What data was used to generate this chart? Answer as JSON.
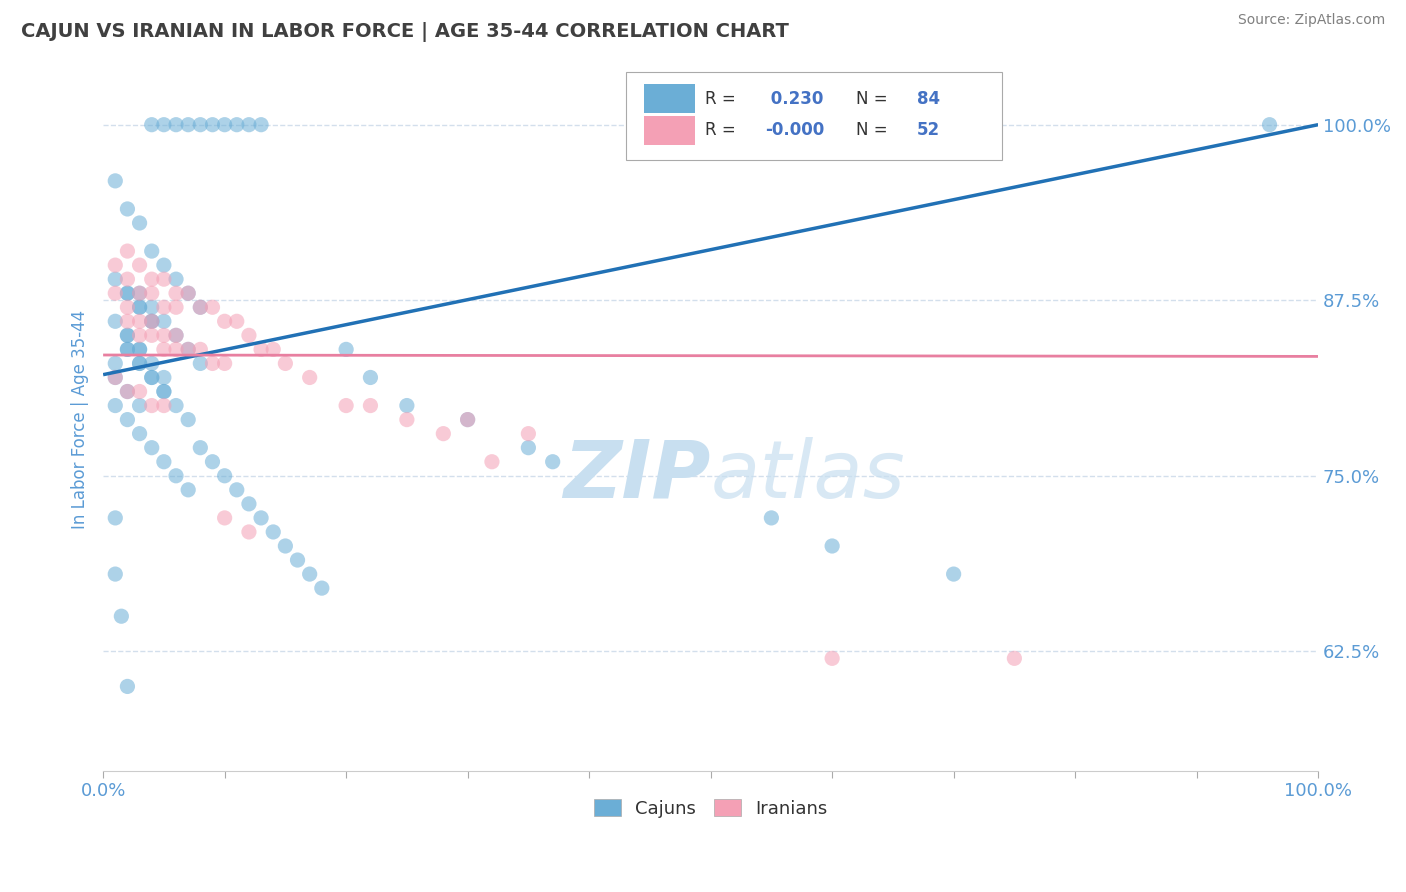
{
  "title": "CAJUN VS IRANIAN IN LABOR FORCE | AGE 35-44 CORRELATION CHART",
  "source": "Source: ZipAtlas.com",
  "ylabel": "In Labor Force | Age 35-44",
  "xlim": [
    0.0,
    1.0
  ],
  "ylim": [
    0.54,
    1.04
  ],
  "yticks": [
    0.625,
    0.75,
    0.875,
    1.0
  ],
  "ytick_labels": [
    "62.5%",
    "75.0%",
    "87.5%",
    "100.0%"
  ],
  "xticks": [
    0.0,
    0.1,
    0.2,
    0.3,
    0.4,
    0.5,
    0.6,
    0.7,
    0.8,
    0.9,
    1.0
  ],
  "xtick_labels_show": [
    "0.0%",
    "",
    "",
    "",
    "",
    "",
    "",
    "",
    "",
    "",
    "100.0%"
  ],
  "cajun_color": "#6baed6",
  "iranian_color": "#f4a0b5",
  "cajun_line_color": "#2171b5",
  "iranian_line_color": "#e87fa0",
  "r_cajun": 0.23,
  "n_cajun": 84,
  "r_iranian": -0.0,
  "n_iranian": 52,
  "legend_color": "#4472c4",
  "watermark_zip": "ZIP",
  "watermark_atlas": "atlas",
  "watermark_color": "#c8dff0",
  "background_color": "#ffffff",
  "title_color": "#404040",
  "title_fontsize": 14,
  "axis_label_color": "#5b9bd5",
  "tick_color": "#5b9bd5",
  "grid_color": "#c8d8e8",
  "cajun_x": [
    0.04,
    0.05,
    0.06,
    0.07,
    0.08,
    0.09,
    0.1,
    0.11,
    0.12,
    0.13,
    0.01,
    0.02,
    0.03,
    0.04,
    0.05,
    0.06,
    0.07,
    0.08,
    0.03,
    0.04,
    0.05,
    0.06,
    0.07,
    0.08,
    0.02,
    0.03,
    0.04,
    0.05,
    0.01,
    0.02,
    0.03,
    0.04,
    0.05,
    0.01,
    0.02,
    0.03,
    0.02,
    0.03,
    0.04,
    0.01,
    0.02,
    0.03,
    0.04,
    0.01,
    0.02,
    0.03,
    0.01,
    0.02,
    0.03,
    0.04,
    0.05,
    0.06,
    0.07,
    0.02,
    0.03,
    0.04,
    0.05,
    0.06,
    0.07,
    0.08,
    0.09,
    0.1,
    0.11,
    0.12,
    0.13,
    0.14,
    0.15,
    0.16,
    0.17,
    0.18,
    0.2,
    0.22,
    0.25,
    0.3,
    0.35,
    0.37,
    0.55,
    0.6,
    0.7,
    0.96,
    0.01,
    0.01,
    0.015,
    0.02
  ],
  "cajun_y": [
    1.0,
    1.0,
    1.0,
    1.0,
    1.0,
    1.0,
    1.0,
    1.0,
    1.0,
    1.0,
    0.96,
    0.94,
    0.93,
    0.91,
    0.9,
    0.89,
    0.88,
    0.87,
    0.88,
    0.87,
    0.86,
    0.85,
    0.84,
    0.83,
    0.85,
    0.84,
    0.83,
    0.82,
    0.83,
    0.84,
    0.83,
    0.82,
    0.81,
    0.86,
    0.85,
    0.84,
    0.88,
    0.87,
    0.86,
    0.89,
    0.88,
    0.87,
    0.86,
    0.82,
    0.81,
    0.8,
    0.8,
    0.79,
    0.78,
    0.77,
    0.76,
    0.75,
    0.74,
    0.84,
    0.83,
    0.82,
    0.81,
    0.8,
    0.79,
    0.77,
    0.76,
    0.75,
    0.74,
    0.73,
    0.72,
    0.71,
    0.7,
    0.69,
    0.68,
    0.67,
    0.84,
    0.82,
    0.8,
    0.79,
    0.77,
    0.76,
    0.72,
    0.7,
    0.68,
    1.0,
    0.72,
    0.68,
    0.65,
    0.6
  ],
  "iranian_x": [
    0.01,
    0.02,
    0.03,
    0.04,
    0.05,
    0.06,
    0.07,
    0.08,
    0.09,
    0.1,
    0.01,
    0.02,
    0.03,
    0.04,
    0.05,
    0.06,
    0.02,
    0.03,
    0.04,
    0.05,
    0.06,
    0.07,
    0.08,
    0.09,
    0.1,
    0.11,
    0.12,
    0.13,
    0.14,
    0.15,
    0.02,
    0.03,
    0.04,
    0.05,
    0.06,
    0.01,
    0.02,
    0.03,
    0.04,
    0.05,
    0.2,
    0.25,
    0.3,
    0.35,
    0.17,
    0.22,
    0.28,
    0.32,
    0.6,
    0.75,
    0.1,
    0.12
  ],
  "iranian_y": [
    0.88,
    0.87,
    0.86,
    0.86,
    0.85,
    0.85,
    0.84,
    0.84,
    0.83,
    0.83,
    0.9,
    0.89,
    0.88,
    0.88,
    0.87,
    0.87,
    0.91,
    0.9,
    0.89,
    0.89,
    0.88,
    0.88,
    0.87,
    0.87,
    0.86,
    0.86,
    0.85,
    0.84,
    0.84,
    0.83,
    0.86,
    0.85,
    0.85,
    0.84,
    0.84,
    0.82,
    0.81,
    0.81,
    0.8,
    0.8,
    0.8,
    0.79,
    0.79,
    0.78,
    0.82,
    0.8,
    0.78,
    0.76,
    0.62,
    0.62,
    0.72,
    0.71
  ],
  "cajun_trend_x": [
    0.0,
    1.0
  ],
  "cajun_trend_y": [
    0.822,
    1.0
  ],
  "iranian_trend_x": [
    0.0,
    1.0
  ],
  "iranian_trend_y": [
    0.836,
    0.835
  ]
}
